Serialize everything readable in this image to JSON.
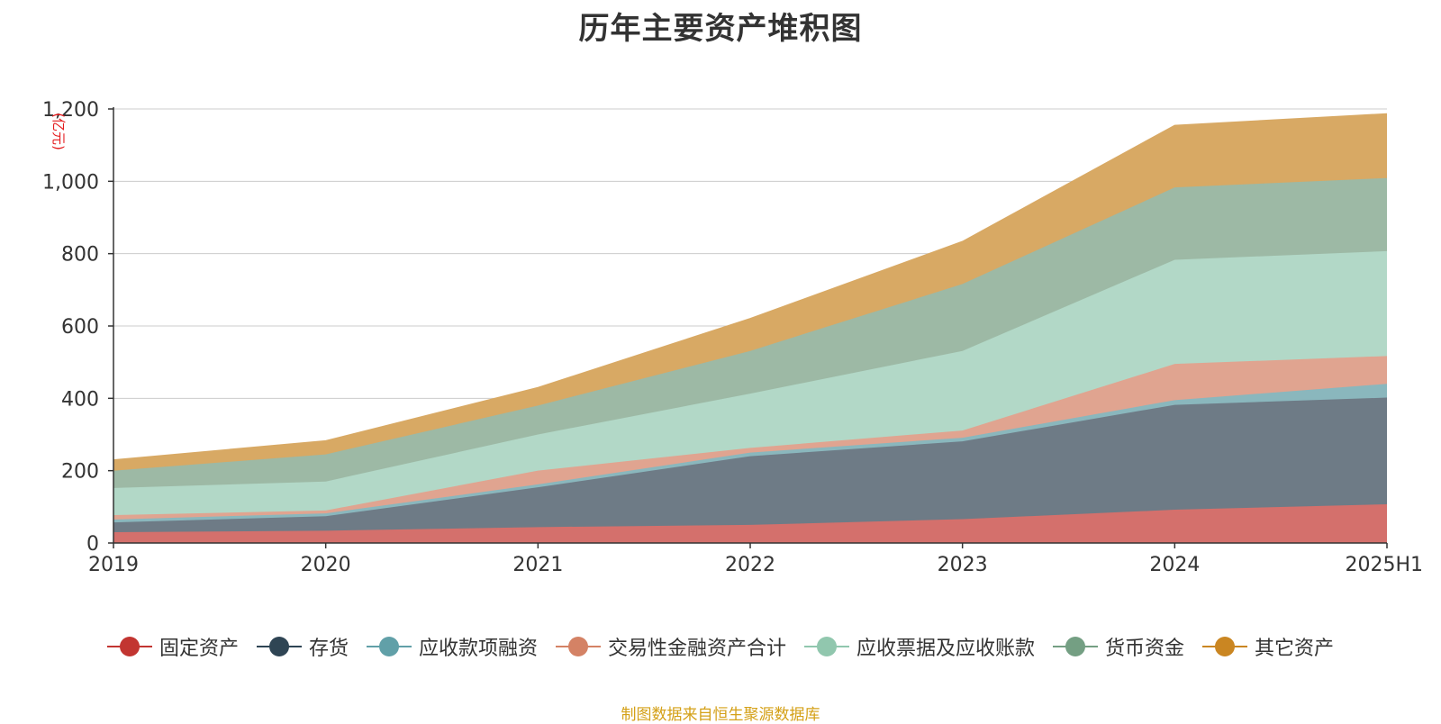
{
  "chart_data": {
    "type": "area",
    "stacked": true,
    "title": "历年主要资产堆积图",
    "ylabel": "(亿元)",
    "xlabel": "",
    "categories": [
      "2019",
      "2020",
      "2021",
      "2022",
      "2023",
      "2024",
      "2025H1"
    ],
    "ylim": [
      0,
      1200
    ],
    "yticks": [
      0,
      200,
      400,
      600,
      800,
      1000,
      1200
    ],
    "ytick_labels": [
      "0",
      "200",
      "400",
      "600",
      "800",
      "1,000",
      "1,200"
    ],
    "grid": true,
    "legend_position": "bottom",
    "series": [
      {
        "name": "固定资产",
        "color": "#c23531",
        "fill": "#d4706c",
        "values": [
          30,
          34,
          44,
          50,
          66,
          92,
          107
        ]
      },
      {
        "name": "存货",
        "color": "#2f4554",
        "fill": "#6e7b86",
        "values": [
          27,
          40,
          110,
          190,
          215,
          290,
          295
        ]
      },
      {
        "name": "应收款项融资",
        "color": "#61a0a8",
        "fill": "#8ab7bd",
        "values": [
          8,
          8,
          8,
          10,
          10,
          13,
          38
        ]
      },
      {
        "name": "交易性金融资产合计",
        "color": "#d48265",
        "fill": "#e0a490",
        "values": [
          12,
          8,
          38,
          13,
          20,
          100,
          77
        ]
      },
      {
        "name": "应收票据及应收账款",
        "color": "#91c7ae",
        "fill": "#b2d8c7",
        "values": [
          75,
          80,
          100,
          150,
          220,
          288,
          290
        ]
      },
      {
        "name": "货币资金",
        "color": "#749f83",
        "fill": "#9db9a5",
        "values": [
          48,
          75,
          80,
          118,
          185,
          200,
          202
        ]
      },
      {
        "name": "其它资产",
        "color": "#ca8622",
        "fill": "#d8a964",
        "values": [
          30,
          38,
          50,
          90,
          118,
          172,
          178
        ]
      }
    ]
  },
  "source_note": "制图数据来自恒生聚源数据库"
}
